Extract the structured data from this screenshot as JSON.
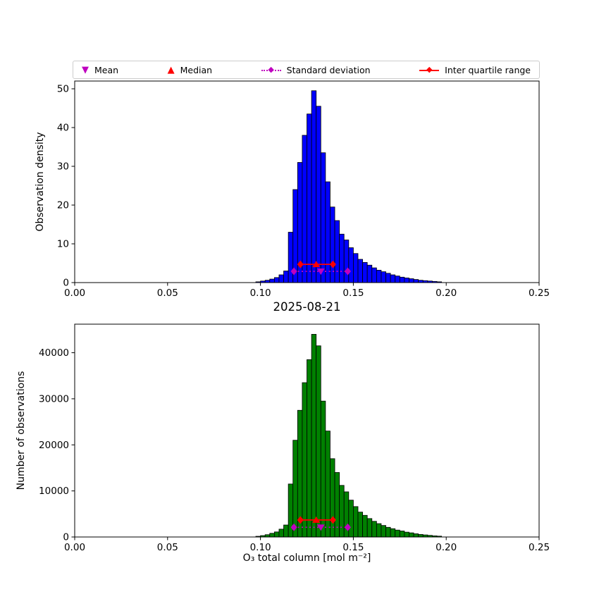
{
  "figure": {
    "title": "2025-08-21",
    "xlabel": "O₃ total column [mol m⁻²]",
    "background": "#ffffff"
  },
  "legend": {
    "items": [
      {
        "id": "mean",
        "label": "Mean",
        "type": "glyph",
        "glyph": "▼",
        "icon": "mean-triangle-down-icon",
        "color": "#BF00BF"
      },
      {
        "id": "median",
        "label": "Median",
        "type": "glyph",
        "glyph": "▲",
        "icon": "median-triangle-up-icon",
        "color": "#FF0000"
      },
      {
        "id": "std",
        "label": "Standard deviation",
        "type": "errorbar",
        "glyph": "◆",
        "line": "dotted",
        "icon": "std-deviation-errorbar-icon",
        "color": "#BF00BF"
      },
      {
        "id": "iqr",
        "label": "Inter quartile range",
        "type": "errorbar",
        "glyph": "◆",
        "line": "solid",
        "icon": "iqr-errorbar-icon",
        "color": "#FF0000"
      }
    ]
  },
  "chart_data": [
    {
      "type": "bar",
      "name": "observation-density-histogram",
      "title": "",
      "xlabel": "",
      "ylabel": "Observation density",
      "bar_color": "#0000FF",
      "bar_edge_color": "#000000",
      "grid": false,
      "xlim": [
        0,
        0.25
      ],
      "ylim": [
        0,
        52
      ],
      "xticks": [
        0,
        0.05,
        0.1,
        0.15,
        0.2,
        0.25
      ],
      "xtick_labels": [
        "0.00",
        "0.05",
        "0.10",
        "0.15",
        "0.20",
        "0.25"
      ],
      "yticks": [
        0,
        10,
        20,
        30,
        40,
        50
      ],
      "ytick_labels": [
        "0",
        "10",
        "20",
        "30",
        "40",
        "50"
      ],
      "bin_start": 0.0975,
      "bin_width": 0.0025,
      "values": [
        0.2,
        0.4,
        0.6,
        0.9,
        1.3,
        2.0,
        3.0,
        13.0,
        24.0,
        31.0,
        38.0,
        43.5,
        49.5,
        45.5,
        33.5,
        26.0,
        19.5,
        16.0,
        12.5,
        11.0,
        9.0,
        7.5,
        6.0,
        5.2,
        4.5,
        3.8,
        3.2,
        2.8,
        2.4,
        2.0,
        1.7,
        1.4,
        1.2,
        1.0,
        0.8,
        0.6,
        0.5,
        0.4,
        0.3,
        0.2
      ],
      "markers": {
        "mean": {
          "x": 0.1325,
          "y": 2.9,
          "color": "#BF00BF"
        },
        "median": {
          "x": 0.13,
          "y": 4.7,
          "color": "#FF0000"
        },
        "std": {
          "x1": 0.118,
          "x2": 0.147,
          "y": 2.9,
          "color": "#BF00BF",
          "line": "dotted"
        },
        "iqr": {
          "x1": 0.1215,
          "x2": 0.139,
          "y": 4.7,
          "color": "#FF0000",
          "line": "solid"
        }
      }
    },
    {
      "type": "bar",
      "name": "observation-count-histogram",
      "title": "2025-08-21",
      "xlabel": "O₃ total column [mol m⁻²]",
      "ylabel": "Number of observations",
      "bar_color": "#008000",
      "bar_edge_color": "#000000",
      "grid": false,
      "xlim": [
        0,
        0.25
      ],
      "ylim": [
        0,
        46200
      ],
      "xticks": [
        0,
        0.05,
        0.1,
        0.15,
        0.2,
        0.25
      ],
      "xtick_labels": [
        "0.00",
        "0.05",
        "0.10",
        "0.15",
        "0.20",
        "0.25"
      ],
      "yticks": [
        0,
        10000,
        20000,
        30000,
        40000
      ],
      "ytick_labels": [
        "0",
        "10000",
        "20000",
        "30000",
        "40000"
      ],
      "bin_start": 0.0975,
      "bin_width": 0.0025,
      "values": [
        150,
        300,
        500,
        800,
        1100,
        1700,
        2600,
        11500,
        21000,
        27500,
        33500,
        38500,
        44000,
        41500,
        29500,
        23000,
        17000,
        14000,
        11200,
        9800,
        8000,
        6600,
        5400,
        4700,
        4000,
        3400,
        2900,
        2500,
        2100,
        1800,
        1500,
        1300,
        1050,
        900,
        700,
        550,
        450,
        350,
        250,
        180
      ],
      "markers": {
        "mean": {
          "x": 0.1325,
          "y": 2100,
          "color": "#BF00BF"
        },
        "median": {
          "x": 0.13,
          "y": 3700,
          "color": "#FF0000"
        },
        "std": {
          "x1": 0.118,
          "x2": 0.147,
          "y": 2100,
          "color": "#BF00BF",
          "line": "dotted"
        },
        "iqr": {
          "x1": 0.1215,
          "x2": 0.139,
          "y": 3700,
          "color": "#FF0000",
          "line": "solid"
        }
      }
    }
  ]
}
